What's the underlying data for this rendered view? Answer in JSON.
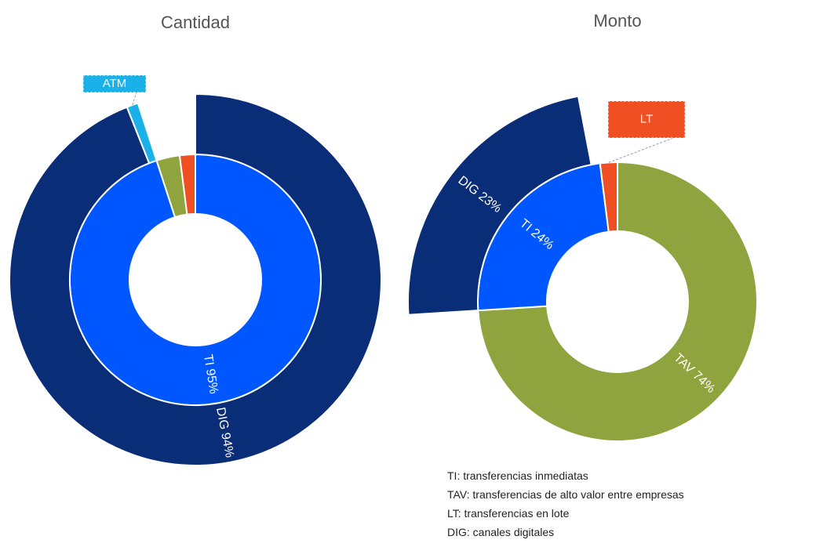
{
  "chart_data": [
    {
      "type": "sunburst",
      "title": "Cantidad",
      "inner": {
        "categories": [
          "TI",
          "TAV",
          "LT"
        ],
        "values": [
          95,
          3,
          2
        ],
        "colors": [
          "#0057ff",
          "#8fa33e",
          "#f04f23"
        ],
        "value_labels": [
          "TI 95%",
          null,
          null
        ]
      },
      "outer": {
        "parent": "TI",
        "categories": [
          "DIG",
          "ATM"
        ],
        "values": [
          94,
          1
        ],
        "colors": [
          "#0a2d78",
          "#1ab0e8"
        ],
        "value_labels": [
          "DIG 94%",
          null
        ]
      }
    },
    {
      "type": "sunburst",
      "title": "Monto",
      "inner": {
        "categories": [
          "TAV",
          "TI",
          "LT"
        ],
        "values": [
          74,
          24,
          2
        ],
        "colors": [
          "#8fa33e",
          "#0057ff",
          "#f04f23"
        ],
        "value_labels": [
          "TAV 74%",
          "TI 24%",
          null
        ]
      },
      "outer": {
        "parent": "TI",
        "categories": [
          "DIG"
        ],
        "values": [
          23
        ],
        "colors": [
          "#0a2d78"
        ],
        "value_labels": [
          "DIG 23%"
        ]
      }
    }
  ],
  "notes": [
    "TI: transferencias inmediatas",
    "TAV: transferencias de alto valor entre empresas",
    "LT: transferencias en lote",
    "DIG: canales digitales"
  ]
}
